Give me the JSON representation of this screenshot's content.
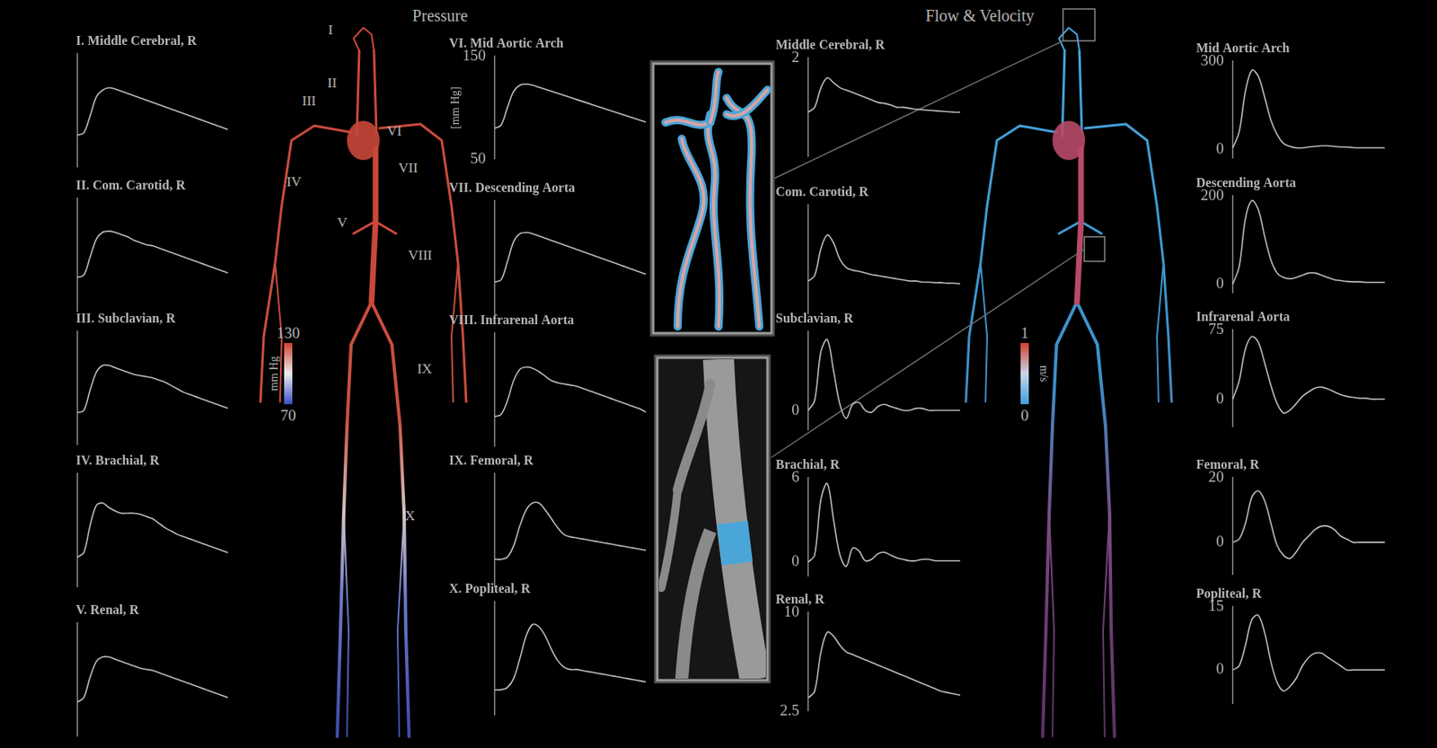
{
  "chart_data": [
    {
      "type": "line",
      "title": "I. Middle Cerebral, R",
      "categories": [
        null,
        null,
        null,
        null,
        null,
        null,
        null,
        null,
        null,
        null,
        null,
        null,
        null,
        null,
        null,
        null,
        null,
        null,
        null,
        null,
        null,
        null,
        null,
        null,
        null
      ],
      "values": [
        78,
        80,
        95,
        112,
        118,
        120,
        119,
        117,
        115,
        113,
        111,
        109,
        107,
        105,
        103,
        101,
        99,
        97,
        95,
        93,
        91,
        89,
        87,
        85,
        83
      ],
      "color": "#bdbdbd",
      "ylim": [
        50,
        150
      ],
      "yticks": [],
      "tick_labels": false,
      "grid": false
    },
    {
      "type": "line",
      "title": "II. Com. Carotid, R",
      "categories": [
        null,
        null,
        null,
        null,
        null,
        null,
        null,
        null,
        null,
        null,
        null,
        null,
        null,
        null,
        null,
        null,
        null,
        null,
        null,
        null,
        null,
        null,
        null,
        null,
        null
      ],
      "values": [
        80,
        82,
        98,
        114,
        120,
        121,
        120,
        118,
        116,
        113,
        111,
        109,
        108,
        106,
        104,
        102,
        100,
        98,
        96,
        94,
        92,
        90,
        88,
        86,
        84
      ],
      "color": "#bdbdbd",
      "ylim": [
        50,
        150
      ],
      "yticks": [],
      "tick_labels": false,
      "grid": false
    },
    {
      "type": "line",
      "title": "III. Subclavian, R",
      "categories": [
        null,
        null,
        null,
        null,
        null,
        null,
        null,
        null,
        null,
        null,
        null,
        null,
        null,
        null,
        null,
        null,
        null,
        null,
        null,
        null,
        null,
        null,
        null,
        null,
        null
      ],
      "values": [
        78,
        80,
        98,
        114,
        120,
        120,
        118,
        116,
        114,
        112,
        111,
        110,
        109,
        107,
        105,
        102,
        99,
        96,
        94,
        92,
        90,
        88,
        86,
        84,
        82
      ],
      "color": "#bdbdbd",
      "ylim": [
        50,
        150
      ],
      "yticks": [],
      "tick_labels": false,
      "grid": false
    },
    {
      "type": "line",
      "title": "IV. Brachial, R",
      "categories": [
        null,
        null,
        null,
        null,
        null,
        null,
        null,
        null,
        null,
        null,
        null,
        null,
        null,
        null,
        null,
        null,
        null,
        null,
        null,
        null,
        null,
        null,
        null,
        null,
        null
      ],
      "values": [
        76,
        80,
        104,
        122,
        124,
        120,
        117,
        115,
        115,
        115,
        114,
        112,
        110,
        106,
        102,
        99,
        96,
        94,
        92,
        90,
        88,
        86,
        84,
        82,
        80
      ],
      "color": "#bdbdbd",
      "ylim": [
        50,
        150
      ],
      "yticks": [],
      "tick_labels": false,
      "grid": false
    },
    {
      "type": "line",
      "title": "V. Renal, R",
      "categories": [
        null,
        null,
        null,
        null,
        null,
        null,
        null,
        null,
        null,
        null,
        null,
        null,
        null,
        null,
        null,
        null,
        null,
        null,
        null,
        null,
        null,
        null,
        null,
        null,
        null
      ],
      "values": [
        80,
        84,
        102,
        116,
        120,
        120,
        118,
        116,
        114,
        112,
        110,
        109,
        108,
        106,
        104,
        102,
        100,
        98,
        96,
        94,
        92,
        90,
        88,
        86,
        84
      ],
      "color": "#bdbdbd",
      "ylim": [
        50,
        150
      ],
      "yticks": [],
      "tick_labels": false,
      "grid": false
    },
    {
      "type": "line",
      "title": "VI. Mid Aortic Arch",
      "ylabel": "[mm Hg]",
      "categories": [
        null,
        null,
        null,
        null,
        null,
        null,
        null,
        null,
        null,
        null,
        null,
        null,
        null,
        null,
        null,
        null,
        null,
        null,
        null,
        null,
        null,
        null,
        null,
        null,
        null
      ],
      "values": [
        80,
        83,
        100,
        116,
        122,
        123,
        122,
        120,
        118,
        116,
        114,
        112,
        110,
        108,
        106,
        104,
        102,
        100,
        98,
        96,
        94,
        92,
        90,
        88,
        86
      ],
      "color": "#bdbdbd",
      "ylim": [
        50,
        150
      ],
      "yticks": [
        150,
        50
      ],
      "tick_labels": "y",
      "grid": false
    },
    {
      "type": "line",
      "title": "VII. Descending Aorta",
      "categories": [
        null,
        null,
        null,
        null,
        null,
        null,
        null,
        null,
        null,
        null,
        null,
        null,
        null,
        null,
        null,
        null,
        null,
        null,
        null,
        null,
        null,
        null,
        null,
        null,
        null
      ],
      "values": [
        78,
        80,
        96,
        114,
        121,
        122,
        121,
        119,
        117,
        115,
        113,
        111,
        109,
        107,
        105,
        103,
        101,
        99,
        97,
        95,
        93,
        91,
        89,
        87,
        85
      ],
      "color": "#bdbdbd",
      "ylim": [
        50,
        150
      ],
      "yticks": [],
      "tick_labels": false,
      "grid": false
    },
    {
      "type": "line",
      "title": "VIII. Infrarenal Aorta",
      "categories": [
        null,
        null,
        null,
        null,
        null,
        null,
        null,
        null,
        null,
        null,
        null,
        null,
        null,
        null,
        null,
        null,
        null,
        null,
        null,
        null,
        null,
        null,
        null,
        null,
        null
      ],
      "values": [
        76,
        78,
        90,
        108,
        118,
        120,
        119,
        116,
        112,
        108,
        106,
        105,
        104,
        103,
        101,
        99,
        97,
        95,
        93,
        91,
        89,
        87,
        85,
        83,
        80
      ],
      "color": "#bdbdbd",
      "ylim": [
        50,
        150
      ],
      "yticks": [],
      "tick_labels": false,
      "grid": false
    },
    {
      "type": "line",
      "title": "IX. Femoral, R",
      "categories": [
        null,
        null,
        null,
        null,
        null,
        null,
        null,
        null,
        null,
        null,
        null,
        null,
        null,
        null,
        null,
        null,
        null,
        null,
        null,
        null,
        null,
        null,
        null,
        null,
        null
      ],
      "values": [
        74,
        74,
        76,
        86,
        104,
        118,
        124,
        124,
        118,
        110,
        102,
        96,
        94,
        93,
        92,
        91,
        90,
        89,
        88,
        87,
        86,
        85,
        84,
        83,
        82
      ],
      "color": "#bdbdbd",
      "ylim": [
        50,
        150
      ],
      "yticks": [],
      "tick_labels": false,
      "grid": false
    },
    {
      "type": "line",
      "title": "X. Popliteal, R",
      "categories": [
        null,
        null,
        null,
        null,
        null,
        null,
        null,
        null,
        null,
        null,
        null,
        null,
        null,
        null,
        null,
        null,
        null,
        null,
        null,
        null,
        null,
        null,
        null,
        null,
        null
      ],
      "values": [
        72,
        72,
        74,
        82,
        100,
        120,
        130,
        128,
        120,
        108,
        98,
        92,
        90,
        90,
        89,
        88,
        87,
        86,
        85,
        84,
        83,
        82,
        81,
        80,
        79
      ],
      "color": "#bdbdbd",
      "ylim": [
        50,
        150
      ],
      "yticks": [],
      "tick_labels": false,
      "grid": false
    },
    {
      "type": "line",
      "title": "Middle Cerebral, R",
      "categories": [
        null,
        null,
        null,
        null,
        null,
        null,
        null,
        null,
        null,
        null,
        null,
        null,
        null,
        null,
        null,
        null,
        null,
        null,
        null,
        null,
        null,
        null,
        null,
        null,
        null
      ],
      "values": [
        0.9,
        1.0,
        1.4,
        1.6,
        1.5,
        1.4,
        1.35,
        1.3,
        1.25,
        1.2,
        1.15,
        1.1,
        1.08,
        1.05,
        1.0,
        1.0,
        0.98,
        0.96,
        0.95,
        0.94,
        0.93,
        0.92,
        0.91,
        0.9,
        0.9
      ],
      "color": "#bdbdbd",
      "ylim": [
        0,
        2
      ],
      "yticks": [
        2
      ],
      "tick_labels": "y",
      "grid": false
    },
    {
      "type": "line",
      "title": "Com. Carotid, R",
      "categories": [
        null,
        null,
        null,
        null,
        null,
        null,
        null,
        null,
        null,
        null,
        null,
        null,
        null,
        null,
        null,
        null,
        null,
        null,
        null,
        null,
        null,
        null,
        null,
        null,
        null
      ],
      "values": [
        0.6,
        0.7,
        1.2,
        1.45,
        1.3,
        1.0,
        0.85,
        0.8,
        0.78,
        0.75,
        0.72,
        0.7,
        0.68,
        0.66,
        0.64,
        0.62,
        0.6,
        0.6,
        0.58,
        0.58,
        0.57,
        0.57,
        0.56,
        0.56,
        0.55
      ],
      "color": "#bdbdbd",
      "ylim": [
        0,
        2
      ],
      "yticks": [],
      "tick_labels": false,
      "grid": false
    },
    {
      "type": "line",
      "title": "Subclavian, R",
      "categories": [
        null,
        null,
        null,
        null,
        null,
        null,
        null,
        null,
        null,
        null,
        null,
        null,
        null,
        null,
        null,
        null,
        null,
        null,
        null,
        null,
        null,
        null,
        null,
        null,
        null
      ],
      "values": [
        0,
        0.5,
        3.0,
        3.6,
        2.0,
        0.3,
        -0.4,
        0.3,
        0.4,
        0,
        -0.1,
        0.2,
        0.3,
        0.2,
        0.1,
        0,
        0,
        0.1,
        0.1,
        0,
        0,
        0,
        0,
        0,
        0
      ],
      "color": "#bdbdbd",
      "ylim": [
        -1,
        4
      ],
      "yticks": [
        0
      ],
      "tick_labels": "y",
      "grid": false
    },
    {
      "type": "line",
      "title": "Brachial, R",
      "categories": [
        null,
        null,
        null,
        null,
        null,
        null,
        null,
        null,
        null,
        null,
        null,
        null,
        null,
        null,
        null,
        null,
        null,
        null,
        null,
        null,
        null,
        null,
        null,
        null,
        null
      ],
      "values": [
        0,
        0.5,
        4.5,
        5.6,
        3.0,
        0.5,
        -0.3,
        1.0,
        0.8,
        0.1,
        0.2,
        0.6,
        0.7,
        0.5,
        0.3,
        0.2,
        0.1,
        0.1,
        0.2,
        0.2,
        0.1,
        0.1,
        0.1,
        0.1,
        0.1
      ],
      "color": "#bdbdbd",
      "ylim": [
        -1,
        6
      ],
      "yticks": [
        6,
        0
      ],
      "tick_labels": "y",
      "grid": false
    },
    {
      "type": "line",
      "title": "Renal, R",
      "categories": [
        null,
        null,
        null,
        null,
        null,
        null,
        null,
        null,
        null,
        null,
        null,
        null,
        null,
        null,
        null,
        null,
        null,
        null,
        null,
        null,
        null,
        null,
        null,
        null,
        null
      ],
      "values": [
        3.5,
        4,
        7,
        8.5,
        8.2,
        7.5,
        7,
        6.8,
        6.6,
        6.4,
        6.2,
        6.0,
        5.8,
        5.6,
        5.4,
        5.2,
        5.0,
        4.8,
        4.6,
        4.4,
        4.2,
        4.0,
        3.9,
        3.8,
        3.7
      ],
      "color": "#bdbdbd",
      "ylim": [
        2.5,
        10
      ],
      "yticks": [
        10,
        2.5
      ],
      "tick_labels": "y",
      "grid": false
    },
    {
      "type": "line",
      "title": "Mid Aortic Arch",
      "categories": [
        null,
        null,
        null,
        null,
        null,
        null,
        null,
        null,
        null,
        null,
        null,
        null,
        null,
        null,
        null,
        null,
        null,
        null,
        null,
        null,
        null,
        null,
        null,
        null,
        null
      ],
      "values": [
        5,
        60,
        200,
        270,
        250,
        180,
        100,
        50,
        20,
        10,
        5,
        5,
        8,
        10,
        12,
        12,
        10,
        8,
        8,
        6,
        5,
        5,
        5,
        5,
        5
      ],
      "color": "#bdbdbd",
      "ylim": [
        -30,
        300
      ],
      "yticks": [
        300,
        0
      ],
      "tick_labels": "y",
      "grid": false
    },
    {
      "type": "line",
      "title": "Descending Aorta",
      "categories": [
        null,
        null,
        null,
        null,
        null,
        null,
        null,
        null,
        null,
        null,
        null,
        null,
        null,
        null,
        null,
        null,
        null,
        null,
        null,
        null,
        null,
        null,
        null,
        null,
        null
      ],
      "values": [
        0,
        40,
        150,
        190,
        170,
        110,
        55,
        25,
        15,
        12,
        15,
        20,
        25,
        25,
        20,
        15,
        10,
        8,
        6,
        5,
        5,
        4,
        4,
        4,
        4
      ],
      "color": "#bdbdbd",
      "ylim": [
        -20,
        200
      ],
      "yticks": [
        200,
        0
      ],
      "tick_labels": "y",
      "grid": false
    },
    {
      "type": "line",
      "title": "Infrarenal Aorta",
      "categories": [
        null,
        null,
        null,
        null,
        null,
        null,
        null,
        null,
        null,
        null,
        null,
        null,
        null,
        null,
        null,
        null,
        null,
        null,
        null,
        null,
        null,
        null,
        null,
        null,
        null
      ],
      "values": [
        0,
        20,
        55,
        68,
        62,
        40,
        15,
        -5,
        -15,
        -12,
        -5,
        3,
        8,
        12,
        13,
        11,
        8,
        5,
        3,
        2,
        1,
        1,
        0,
        0,
        0
      ],
      "color": "#bdbdbd",
      "ylim": [
        -30,
        75
      ],
      "yticks": [
        75,
        0
      ],
      "tick_labels": "y",
      "grid": false
    },
    {
      "type": "line",
      "title": "Femoral, R",
      "categories": [
        null,
        null,
        null,
        null,
        null,
        null,
        null,
        null,
        null,
        null,
        null,
        null,
        null,
        null,
        null,
        null,
        null,
        null,
        null,
        null,
        null,
        null,
        null,
        null,
        null
      ],
      "values": [
        0,
        1,
        6,
        14,
        16,
        13,
        6,
        -1,
        -4,
        -5,
        -3,
        0,
        2,
        4,
        5,
        5,
        4,
        2,
        1,
        0,
        0,
        0,
        0,
        0,
        0
      ],
      "color": "#bdbdbd",
      "ylim": [
        -10,
        20
      ],
      "yticks": [
        20,
        0
      ],
      "tick_labels": "y",
      "grid": false
    },
    {
      "type": "line",
      "title": "Popliteal, R",
      "categories": [
        null,
        null,
        null,
        null,
        null,
        null,
        null,
        null,
        null,
        null,
        null,
        null,
        null,
        null,
        null,
        null,
        null,
        null,
        null,
        null,
        null,
        null,
        null,
        null,
        null
      ],
      "values": [
        0,
        1,
        6,
        12,
        13,
        9,
        2,
        -3,
        -5,
        -4,
        -2,
        1,
        3,
        4,
        4,
        3,
        2,
        1,
        0,
        0,
        0,
        0,
        0,
        0,
        0
      ],
      "color": "#bdbdbd",
      "ylim": [
        -8,
        15
      ],
      "yticks": [
        15,
        0
      ],
      "tick_labels": "y",
      "grid": false
    }
  ],
  "figure": {
    "pressure_title": "Pressure",
    "flow_title": "Flow & Velocity",
    "markers": [
      "I",
      "II",
      "III",
      "IV",
      "V",
      "VI",
      "VII",
      "VIII",
      "IX",
      "X"
    ],
    "pressure_colorbar": {
      "label": "mm Hg",
      "range": [
        70,
        130
      ],
      "ticks": [
        130,
        70
      ]
    },
    "velocity_colorbar": {
      "label": "m/s",
      "range": [
        0,
        1
      ],
      "ticks": [
        1,
        0
      ]
    }
  }
}
